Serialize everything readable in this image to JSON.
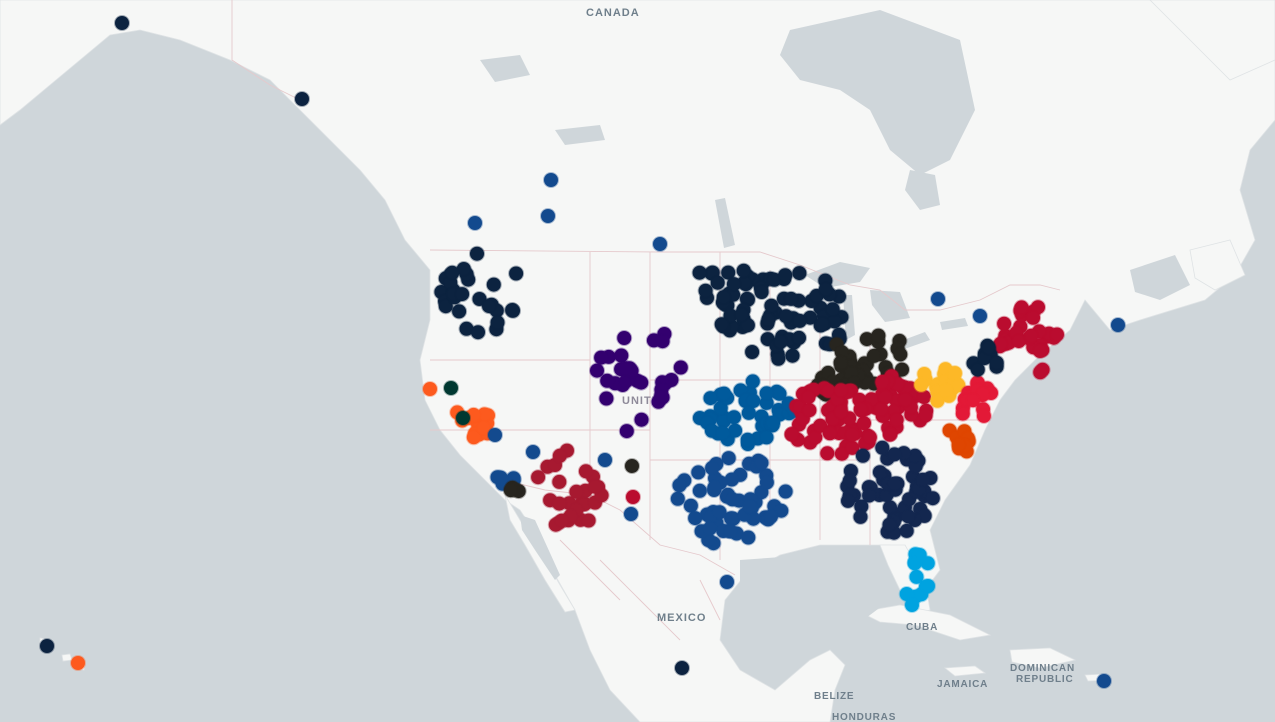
{
  "map": {
    "colors": {
      "ocean": "#cfd6da",
      "land": "#f6f7f6",
      "border": "#e5c9cc",
      "lake": "#cfd6da",
      "label": "#6f7f8b"
    },
    "labels": {
      "canada": "CANADA",
      "mexico": "MEXICO",
      "united_states": "UNITED",
      "cuba": "CUBA",
      "jamaica": "JAMAICA",
      "belize": "BELIZE",
      "honduras": "HONDURAS",
      "dominican_republic_1": "DOMINICAN",
      "dominican_republic_2": "REPUBLIC"
    },
    "team_colors": {
      "navy": "#13274f",
      "darknavy": "#0c2340",
      "blue": "#134a8e",
      "royal": "#005a9c",
      "red": "#ba0c2f",
      "scarlet": "#e31937",
      "purple": "#33006f",
      "orange": "#fd5a1e",
      "burntorange": "#df4601",
      "gold": "#fdb827",
      "black": "#27251f",
      "green": "#003831",
      "sky": "#00a3e0",
      "crimson": "#a71930"
    }
  }
}
